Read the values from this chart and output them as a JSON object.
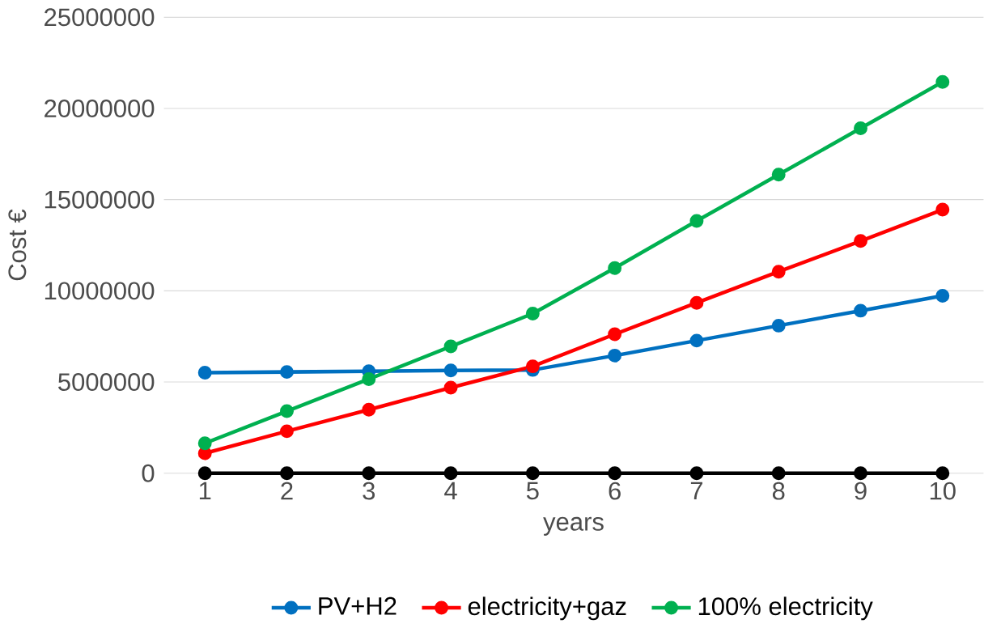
{
  "chart_data": {
    "type": "line",
    "xlabel": "years",
    "ylabel": "Cost €",
    "categories": [
      "1",
      "2",
      "3",
      "4",
      "5",
      "6",
      "7",
      "8",
      "9",
      "10"
    ],
    "series": [
      {
        "name": "PV+H2",
        "color": "#0070c0",
        "values": [
          5510000,
          5550000,
          5590000,
          5630000,
          5660000,
          6450000,
          7270000,
          8090000,
          8910000,
          9730000
        ]
      },
      {
        "name": "electricity+gaz",
        "color": "#ff0000",
        "values": [
          1090000,
          2300000,
          3480000,
          4690000,
          5860000,
          7620000,
          9340000,
          11050000,
          12730000,
          14450000
        ]
      },
      {
        "name": "100% electricity",
        "color": "#00b050",
        "values": [
          1640000,
          3400000,
          5160000,
          6950000,
          8750000,
          11250000,
          13830000,
          16370000,
          18910000,
          21450000
        ]
      },
      {
        "color": "#000000",
        "values": [
          0,
          0,
          0,
          0,
          0,
          0,
          0,
          0,
          0,
          0
        ]
      }
    ],
    "ylim": [
      0,
      25000000
    ],
    "yticks": [
      0,
      5000000,
      10000000,
      15000000,
      20000000,
      25000000
    ],
    "grid": "y",
    "legend": "bottom",
    "marker": "circle",
    "line_style": "solid"
  }
}
